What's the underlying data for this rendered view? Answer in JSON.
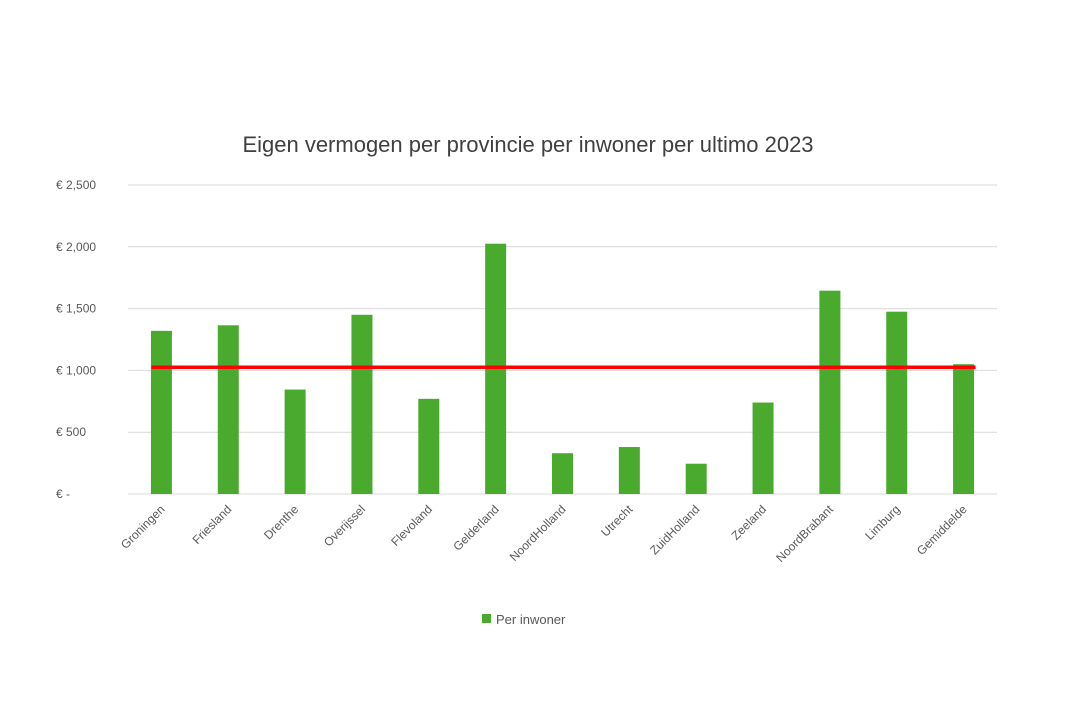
{
  "chart_data": {
    "type": "bar",
    "title": "Eigen vermogen per provincie per inwoner per ultimo 2023",
    "xlabel": "",
    "ylabel": "",
    "categories": [
      "Groningen",
      "Friesland",
      "Drenthe",
      "Overijssel",
      "Flevoland",
      "Gelderland",
      "NoordHolland",
      "Utrecht",
      "ZuidHolland",
      "Zeeland",
      "NoordBrabant",
      "Limburg",
      "Gemiddelde"
    ],
    "series": [
      {
        "name": "Per inwoner",
        "color": "#4aaa2e",
        "values": [
          1320,
          1365,
          845,
          1450,
          770,
          2025,
          330,
          380,
          245,
          740,
          1645,
          1475,
          1050
        ]
      }
    ],
    "reference_line": {
      "value": 1025,
      "color": "#ff0000"
    },
    "ylim": [
      0,
      2500
    ],
    "y_ticks": [
      {
        "value": 0,
        "label": "€ -"
      },
      {
        "value": 500,
        "label": "€ 500"
      },
      {
        "value": 1000,
        "label": "€ 1,000"
      },
      {
        "value": 1500,
        "label": "€ 1,500"
      },
      {
        "value": 2000,
        "label": "€ 2,000"
      },
      {
        "value": 2500,
        "label": "€ 2,500"
      }
    ],
    "grid": true,
    "legend_position": "bottom"
  }
}
